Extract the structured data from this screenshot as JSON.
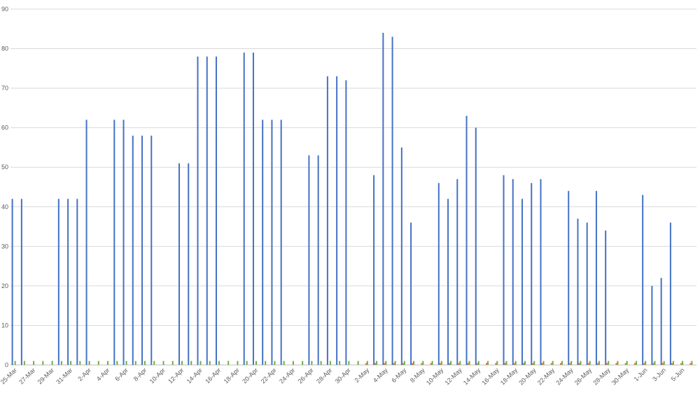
{
  "chart_data": {
    "type": "bar",
    "categories": [
      "25-Mar",
      null,
      "27-Mar",
      null,
      "29-Mar",
      null,
      "31-Mar",
      null,
      "2-Apr",
      null,
      "4-Apr",
      null,
      "6-Apr",
      null,
      "8-Apr",
      null,
      "10-Apr",
      null,
      "12-Apr",
      null,
      "14-Apr",
      null,
      "16-Apr",
      null,
      "18-Apr",
      null,
      "20-Apr",
      null,
      "22-Apr",
      null,
      "24-Apr",
      null,
      "26-Apr",
      null,
      "28-Apr",
      null,
      "30-Apr",
      null,
      "2-May",
      null,
      "4-May",
      null,
      "6-May",
      null,
      "8-May",
      null,
      "10-May",
      null,
      "12-May",
      null,
      "14-May",
      null,
      "16-May",
      null,
      "18-May",
      null,
      "20-May",
      null,
      "22-May",
      null,
      "24-May",
      null,
      "26-May",
      null,
      "28-May",
      null,
      "30-May",
      null,
      "1-Jun",
      null,
      "3-Jun",
      null,
      "5-Jun",
      null
    ],
    "series": [
      {
        "color": "#4472c4",
        "values": [
          42,
          42,
          0,
          0,
          0,
          42,
          42,
          42,
          62,
          0,
          0,
          62,
          62,
          58,
          58,
          58,
          0,
          0,
          51,
          51,
          78,
          78,
          78,
          0,
          0,
          79,
          79,
          62,
          62,
          62,
          0,
          0,
          53,
          53,
          73,
          73,
          72,
          0,
          0,
          48,
          84,
          83,
          55,
          36,
          0,
          0,
          46,
          42,
          47,
          63,
          60,
          0,
          0,
          48,
          47,
          42,
          46,
          47,
          0,
          0,
          44,
          37,
          36,
          44,
          34,
          0,
          0,
          0,
          43,
          20,
          22,
          36,
          0,
          0
        ]
      },
      {
        "color": "#ed7d31",
        "values": [
          0,
          0,
          0,
          0,
          0,
          0,
          0,
          0,
          0,
          0,
          0,
          0,
          0,
          0,
          0,
          0,
          0,
          0,
          0,
          0,
          0,
          0,
          0,
          0,
          0,
          0,
          0,
          0,
          0,
          0,
          0,
          0,
          0,
          0,
          0,
          0,
          0,
          0,
          0.5,
          0.5,
          0.5,
          0.5,
          0.5,
          0.5,
          0.5,
          0.5,
          0.5,
          0.5,
          0.5,
          0.5,
          0.5,
          0.5,
          0.5,
          0.5,
          0.5,
          0.5,
          0.5,
          0.5,
          0.5,
          0.5,
          0.5,
          0.5,
          0.5,
          0.5,
          0.5,
          0.5,
          0.5,
          0.5,
          0.5,
          0.5,
          0.5,
          0.5,
          0.5,
          0.5
        ]
      },
      {
        "color": "#70ad47",
        "values": [
          1,
          1,
          1,
          1,
          1,
          1,
          1,
          1,
          1,
          1,
          1,
          1,
          1,
          1,
          1,
          1,
          1,
          1,
          1,
          1,
          1,
          1,
          1,
          1,
          1,
          1,
          1,
          1,
          1,
          1,
          1,
          1,
          1,
          1,
          1,
          1,
          1,
          1,
          1,
          1,
          1,
          1,
          1,
          1,
          1,
          1,
          1,
          1,
          1,
          1,
          1,
          1,
          1,
          1,
          1,
          1,
          1,
          1,
          1,
          1,
          1,
          1,
          1,
          1,
          1,
          1,
          1,
          1,
          1,
          1,
          1,
          1,
          1,
          1
        ]
      }
    ],
    "ylim": [
      0,
      90
    ],
    "yticks": [
      0,
      10,
      20,
      30,
      40,
      50,
      60,
      70,
      80,
      90
    ],
    "grid": true
  }
}
